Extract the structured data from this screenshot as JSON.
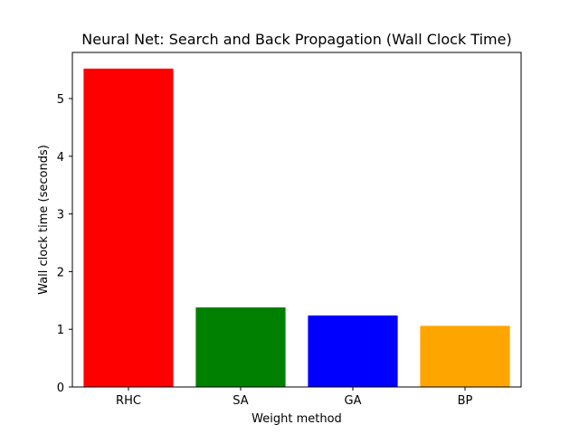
{
  "chart_data": {
    "type": "bar",
    "title": "Neural Net: Search and Back Propagation (Wall Clock Time)",
    "xlabel": "Weight method",
    "ylabel": "Wall clock time (seconds)",
    "categories": [
      "RHC",
      "SA",
      "GA",
      "BP"
    ],
    "values": [
      5.52,
      1.38,
      1.24,
      1.06
    ],
    "colors": [
      "#ff0000",
      "#008000",
      "#0000ff",
      "#ffa500"
    ],
    "ylim": [
      0,
      5.8
    ],
    "yticks": [
      0,
      1,
      2,
      3,
      4,
      5
    ],
    "grid": false,
    "legend": "none"
  }
}
